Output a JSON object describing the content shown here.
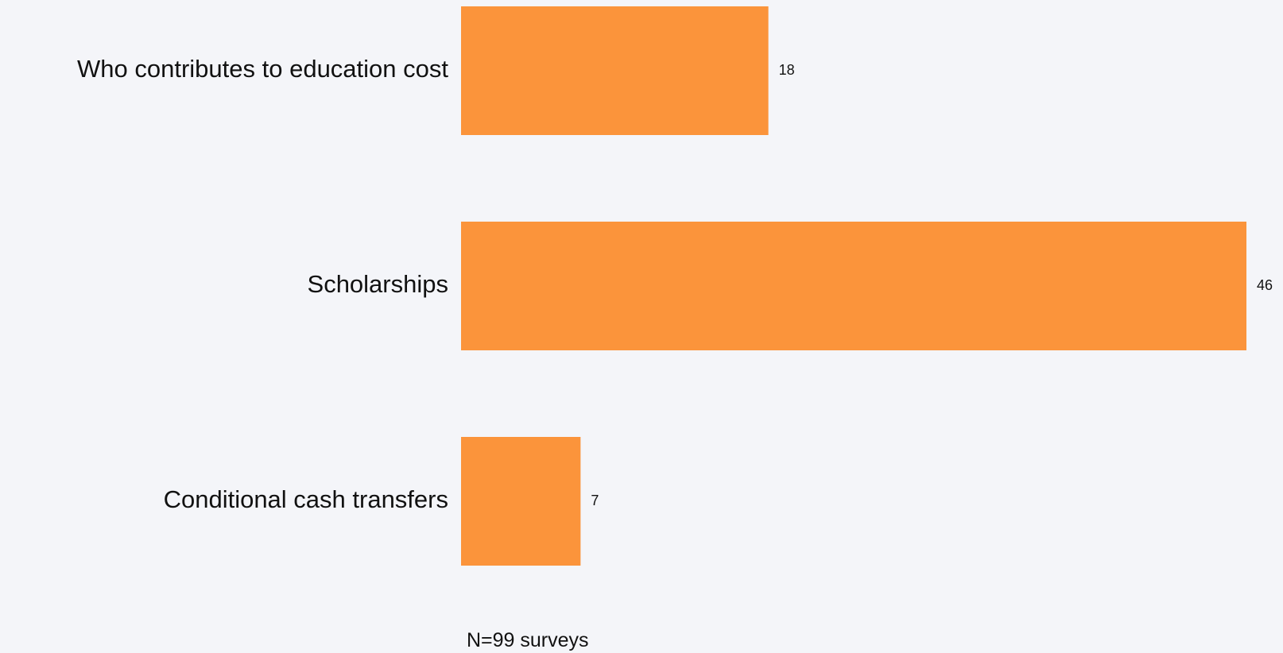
{
  "chart_data": {
    "type": "bar",
    "orientation": "horizontal",
    "categories": [
      "Who contributes to education cost",
      "Scholarships",
      "Conditional cash transfers"
    ],
    "values": [
      18,
      46,
      7
    ],
    "xlim": [
      0,
      46
    ],
    "grid": false,
    "legend": "none",
    "bar_color": "#fb943b",
    "background": "#f4f5f9",
    "footnote": "N=99 surveys"
  }
}
